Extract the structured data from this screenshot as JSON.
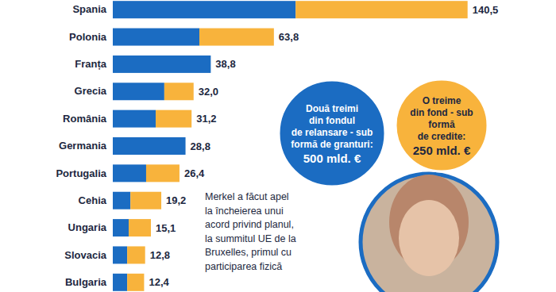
{
  "chart_data": {
    "type": "bar",
    "orientation": "horizontal",
    "stacked": true,
    "tick_labels": "y",
    "categories": [
      "Spania",
      "Polonia",
      "Franța",
      "Grecia",
      "România",
      "Germania",
      "Portugalia",
      "Cehia",
      "Ungaria",
      "Slovacia",
      "Bulgaria"
    ],
    "series": [
      {
        "color": "#1b6cc2",
        "values": [
          72.4,
          34.3,
          38.8,
          20.4,
          17.0,
          28.8,
          13.2,
          7.0,
          6.3,
          5.7,
          5.7
        ]
      },
      {
        "color": "#f8b33c",
        "values": [
          68.1,
          29.5,
          0,
          11.6,
          14.2,
          0,
          13.2,
          12.2,
          8.8,
          7.1,
          6.7
        ]
      }
    ],
    "totals": [
      140.5,
      63.8,
      38.8,
      32.0,
      31.2,
      28.8,
      26.4,
      19.2,
      15.1,
      12.8,
      12.4
    ],
    "total_labels": [
      "140,5",
      "63,8",
      "38,8",
      "32,0",
      "31,2",
      "28,8",
      "26,4",
      "19,2",
      "15,1",
      "12,8",
      "12,4"
    ],
    "xlim": [
      0,
      145
    ],
    "annotations": [
      {
        "lines": [
          "Două treimi",
          "din fondul",
          "de relansare - sub",
          "formă de granturi:",
          "500 mld. €"
        ],
        "color": "#1b6cc2"
      },
      {
        "lines": [
          "O treime",
          "din fond - sub",
          "formă",
          "de credite:",
          "250 mld. €"
        ],
        "color": "#f8b33c"
      },
      {
        "lines": [
          "Merkel a făcut apel",
          "la încheierea unui",
          "acord privind planul,",
          "la summitul UE de la",
          "Bruxelles, primul cu",
          "participarea fizică"
        ]
      }
    ]
  }
}
